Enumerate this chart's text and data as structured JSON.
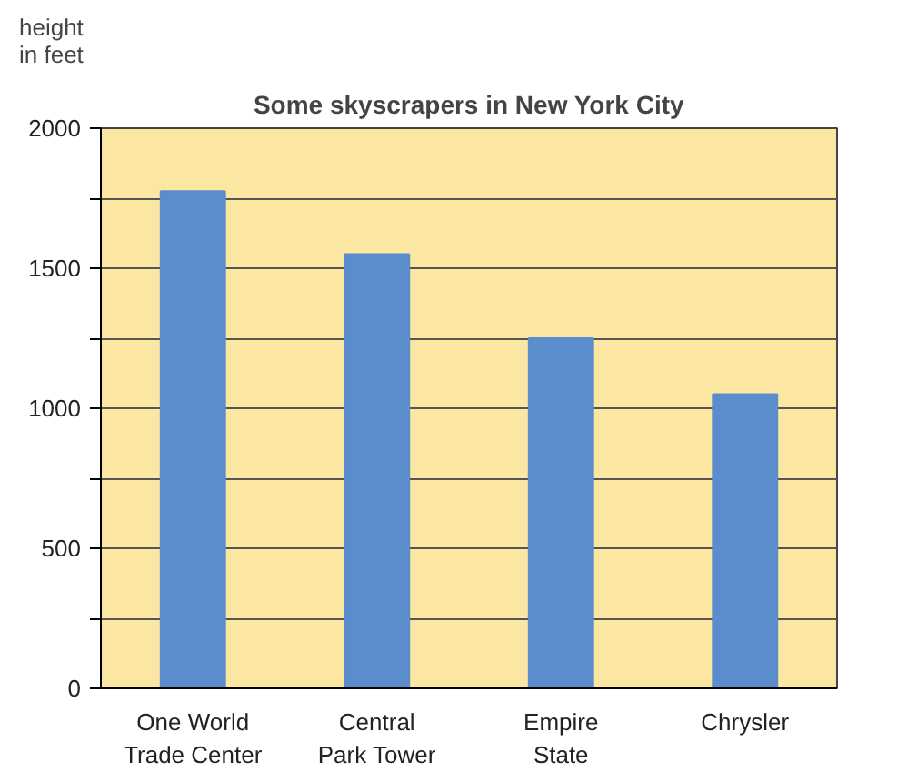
{
  "chart_data": {
    "type": "bar",
    "title": "Some skyscrapers in New York City",
    "ylabel": "height\nin feet",
    "categories": [
      "One World\nTrade Center",
      "Central\nPark Tower",
      "Empire\nState",
      "Chrysler"
    ],
    "values": [
      1775,
      1550,
      1250,
      1050
    ],
    "color": "#5b8dcc",
    "ylim": [
      0,
      2000
    ],
    "yticks": [
      0,
      {
        "value": 250,
        "label": null
      },
      500,
      {
        "value": 750,
        "label": null
      },
      1000,
      {
        "value": 1250,
        "label": null
      },
      1500,
      {
        "value": 1750,
        "label": null
      },
      2000
    ],
    "grid": "y"
  }
}
